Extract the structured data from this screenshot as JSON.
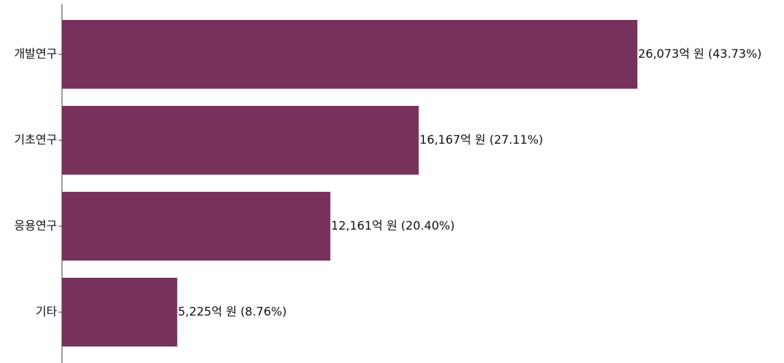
{
  "chart_data": {
    "type": "bar",
    "orientation": "horizontal",
    "categories": [
      "개발연구",
      "기초연구",
      "응용연구",
      "기타"
    ],
    "values": [
      26073,
      16167,
      12161,
      5225
    ],
    "percentages": [
      43.73,
      27.11,
      20.4,
      8.76
    ],
    "data_labels": [
      "26,073억 원 (43.73%)",
      "16,167억 원 (27.11%)",
      "12,161억 원 (20.40%)",
      "5,225억 원 (8.76%)"
    ],
    "xlim": [
      0,
      26073
    ],
    "color": "#76325C",
    "grid": false,
    "legend": "none"
  }
}
